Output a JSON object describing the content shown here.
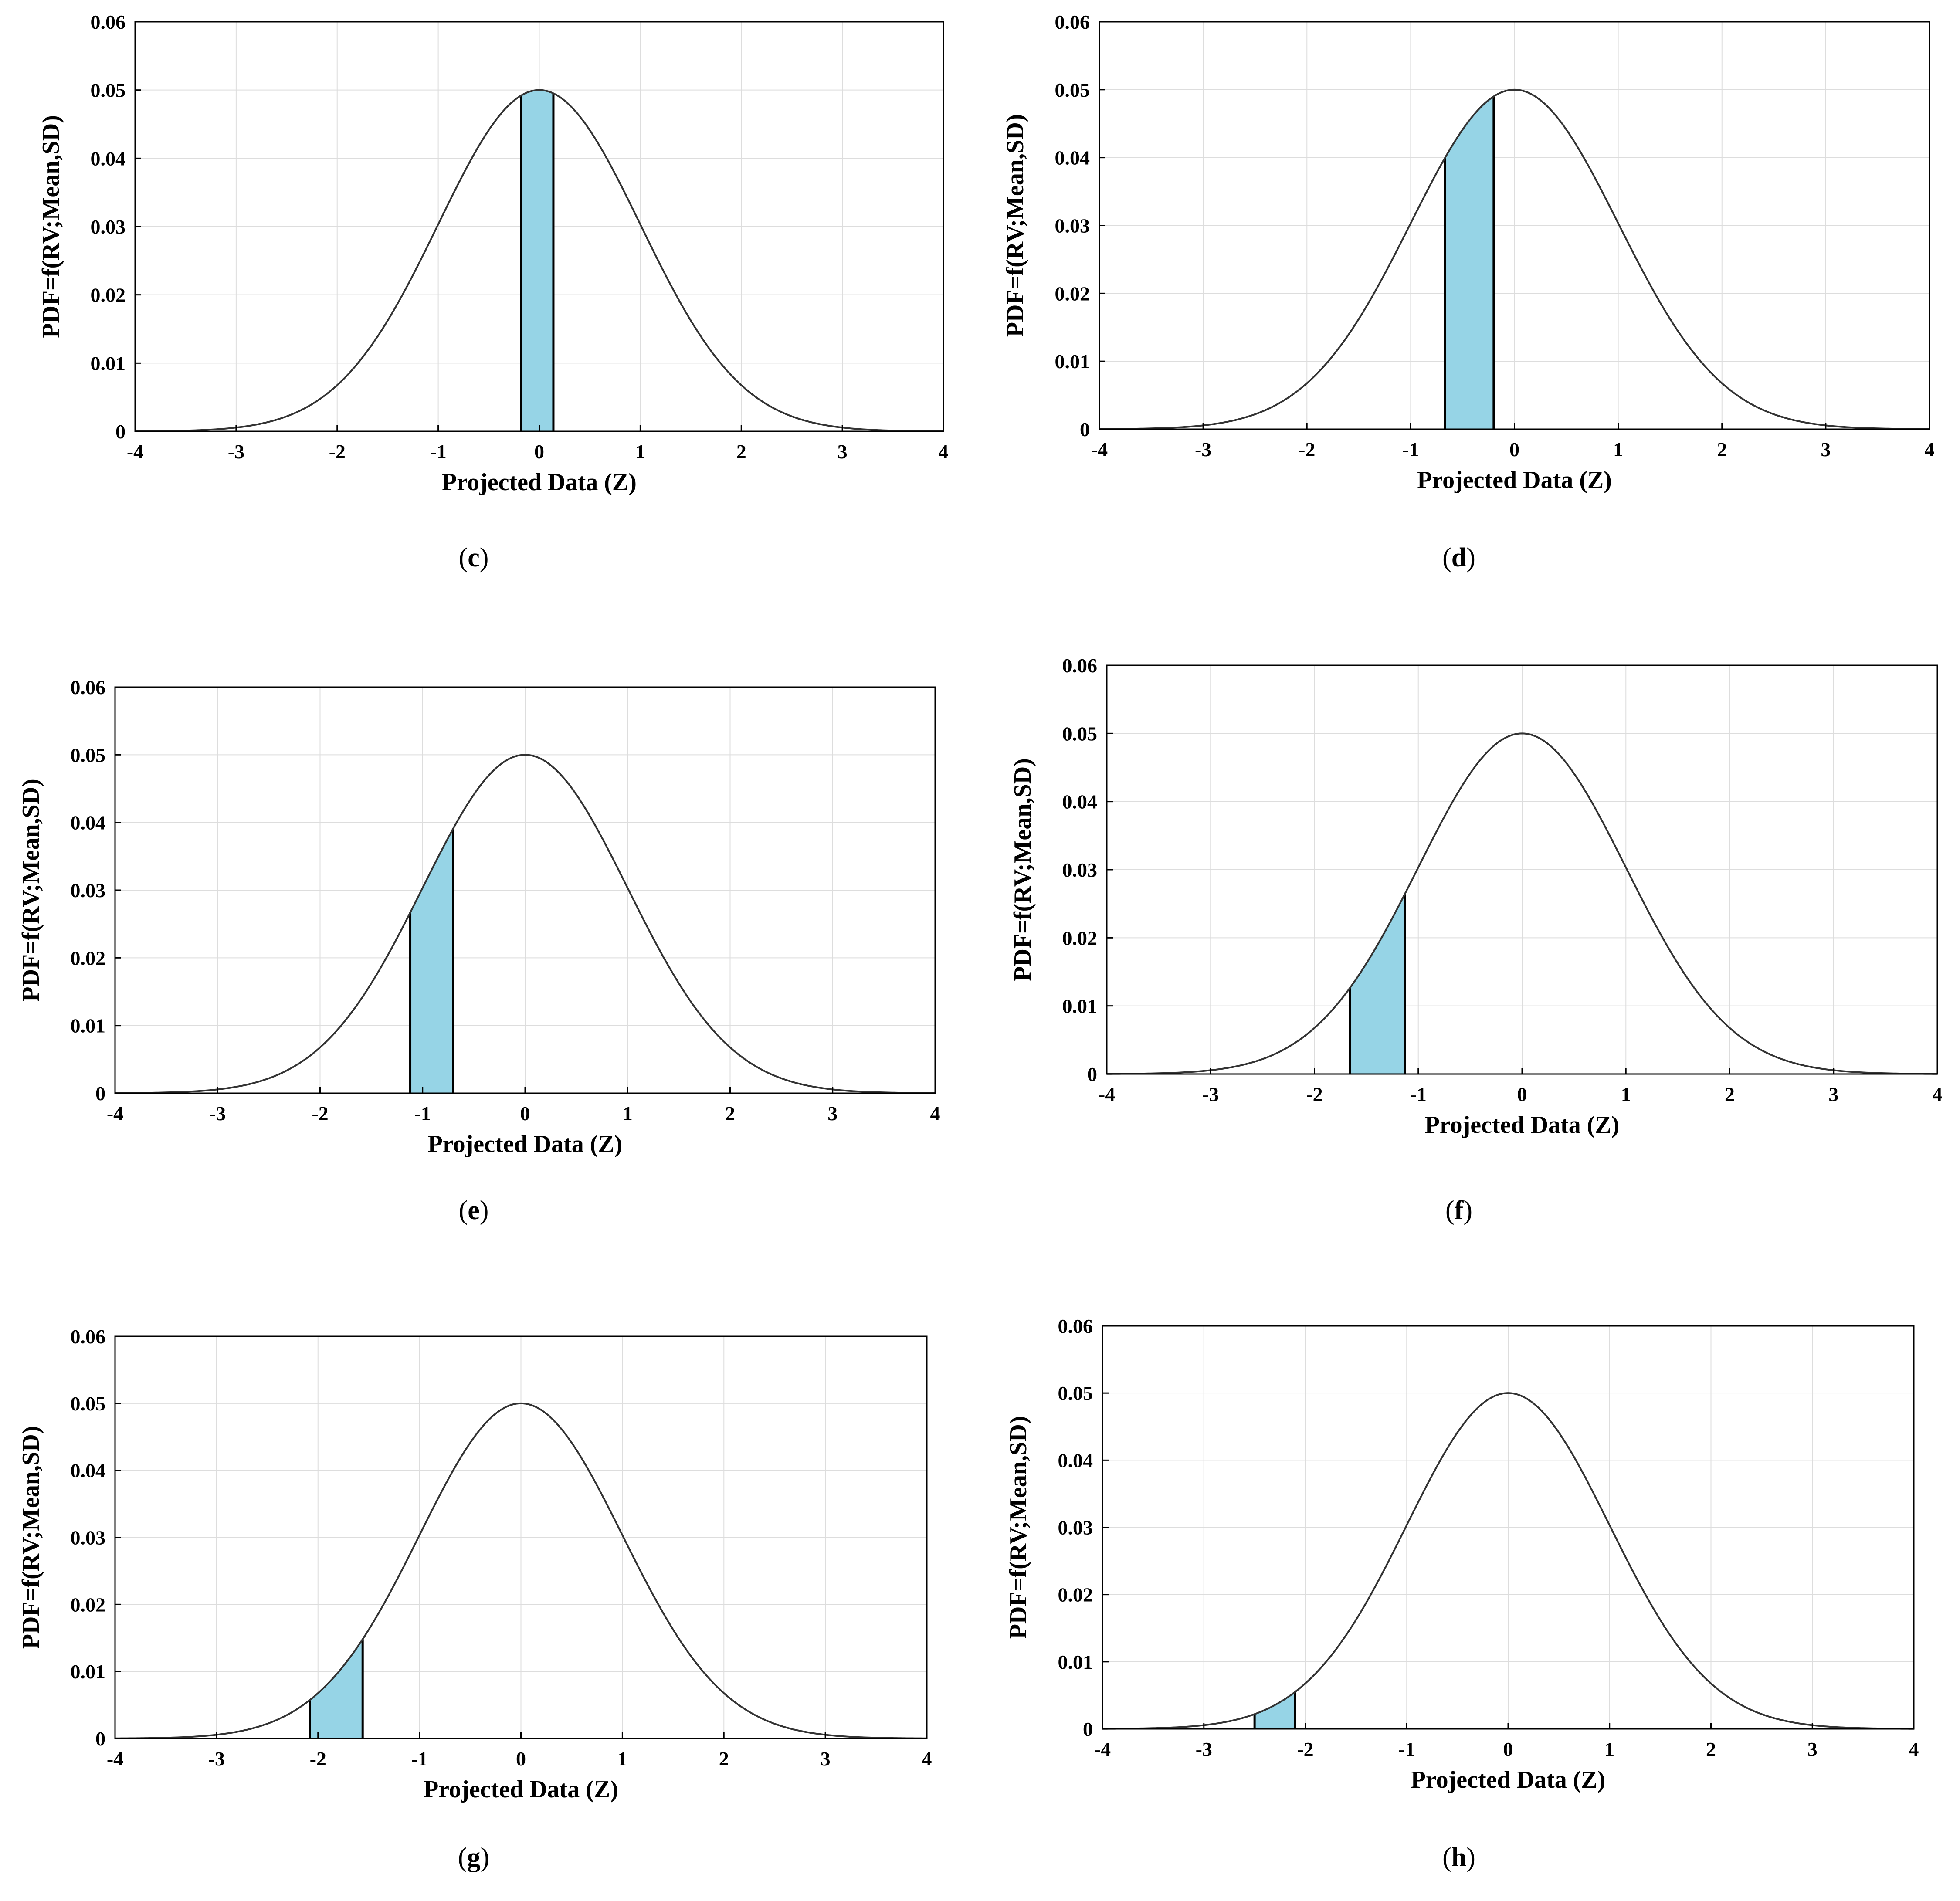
{
  "colors": {
    "shade": "#96d4e6",
    "curve": "#333333",
    "grid": "#dddddd",
    "frame": "#000000"
  },
  "chart_data": [
    {
      "panel": "c",
      "type": "area",
      "caption": "c",
      "xlabel": "Projected Data (Z)",
      "ylabel": "PDF=f(RV;Mean,SD)",
      "xlim": [
        -4,
        4
      ],
      "ylim": [
        0,
        0.06
      ],
      "xticks": [
        "-4",
        "-3",
        "-2",
        "-1",
        "0",
        "1",
        "2",
        "3",
        "4"
      ],
      "yticks": [
        "0",
        "0.01",
        "0.02",
        "0.03",
        "0.04",
        "0.05",
        "0.06"
      ],
      "grid": true,
      "curve": {
        "distribution": "normal",
        "mean": 0,
        "sd": 1,
        "peak": 0.05
      },
      "shaded_interval": [
        -0.18,
        0.14
      ]
    },
    {
      "panel": "d",
      "type": "area",
      "caption": "d",
      "xlabel": "Projected Data (Z)",
      "ylabel": "PDF=f(RV;Mean,SD)",
      "xlim": [
        -4,
        4
      ],
      "ylim": [
        0,
        0.06
      ],
      "xticks": [
        "-4",
        "-3",
        "-2",
        "-1",
        "0",
        "1",
        "2",
        "3",
        "4"
      ],
      "yticks": [
        "0",
        "0.01",
        "0.02",
        "0.03",
        "0.04",
        "0.05",
        "0.06"
      ],
      "grid": true,
      "curve": {
        "distribution": "normal",
        "mean": 0,
        "sd": 1,
        "peak": 0.05
      },
      "shaded_interval": [
        -0.67,
        -0.2
      ]
    },
    {
      "panel": "e",
      "type": "area",
      "caption": "e",
      "xlabel": "Projected Data (Z)",
      "ylabel": "PDF=f(RV;Mean,SD)",
      "xlim": [
        -4,
        4
      ],
      "ylim": [
        0,
        0.06
      ],
      "xticks": [
        "-4",
        "-3",
        "-2",
        "-1",
        "0",
        "1",
        "2",
        "3",
        "4"
      ],
      "yticks": [
        "0",
        "0.01",
        "0.02",
        "0.03",
        "0.04",
        "0.05",
        "0.06"
      ],
      "grid": true,
      "curve": {
        "distribution": "normal",
        "mean": 0,
        "sd": 1,
        "peak": 0.05
      },
      "shaded_interval": [
        -1.12,
        -0.7
      ]
    },
    {
      "panel": "f",
      "type": "area",
      "caption": "f",
      "xlabel": "Projected Data (Z)",
      "ylabel": "PDF=f(RV;Mean,SD)",
      "xlim": [
        -4,
        4
      ],
      "ylim": [
        0,
        0.06
      ],
      "xticks": [
        "-4",
        "-3",
        "-2",
        "-1",
        "0",
        "1",
        "2",
        "3",
        "4"
      ],
      "yticks": [
        "0",
        "0.01",
        "0.02",
        "0.03",
        "0.04",
        "0.05",
        "0.06"
      ],
      "grid": true,
      "curve": {
        "distribution": "normal",
        "mean": 0,
        "sd": 1,
        "peak": 0.05
      },
      "shaded_interval": [
        -1.66,
        -1.13
      ]
    },
    {
      "panel": "g",
      "type": "area",
      "caption": "g",
      "xlabel": "Projected Data (Z)",
      "ylabel": "PDF=f(RV;Mean,SD)",
      "xlim": [
        -4,
        4
      ],
      "ylim": [
        0,
        0.06
      ],
      "xticks": [
        "-4",
        "-3",
        "-2",
        "-1",
        "0",
        "1",
        "2",
        "3",
        "4"
      ],
      "yticks": [
        "0",
        "0.01",
        "0.02",
        "0.03",
        "0.04",
        "0.05",
        "0.06"
      ],
      "grid": true,
      "curve": {
        "distribution": "normal",
        "mean": 0,
        "sd": 1,
        "peak": 0.05
      },
      "shaded_interval": [
        -2.08,
        -1.56
      ]
    },
    {
      "panel": "h",
      "type": "area",
      "caption": "h",
      "xlabel": "Projected Data (Z)",
      "ylabel": "PDF=f(RV;Mean,SD)",
      "xlim": [
        -4,
        4
      ],
      "ylim": [
        0,
        0.06
      ],
      "xticks": [
        "-4",
        "-3",
        "-2",
        "-1",
        "0",
        "1",
        "2",
        "3",
        "4"
      ],
      "yticks": [
        "0",
        "0.01",
        "0.02",
        "0.03",
        "0.04",
        "0.05",
        "0.06"
      ],
      "grid": true,
      "curve": {
        "distribution": "normal",
        "mean": 0,
        "sd": 1,
        "peak": 0.05
      },
      "shaded_interval": [
        -2.5,
        -2.1
      ]
    }
  ]
}
